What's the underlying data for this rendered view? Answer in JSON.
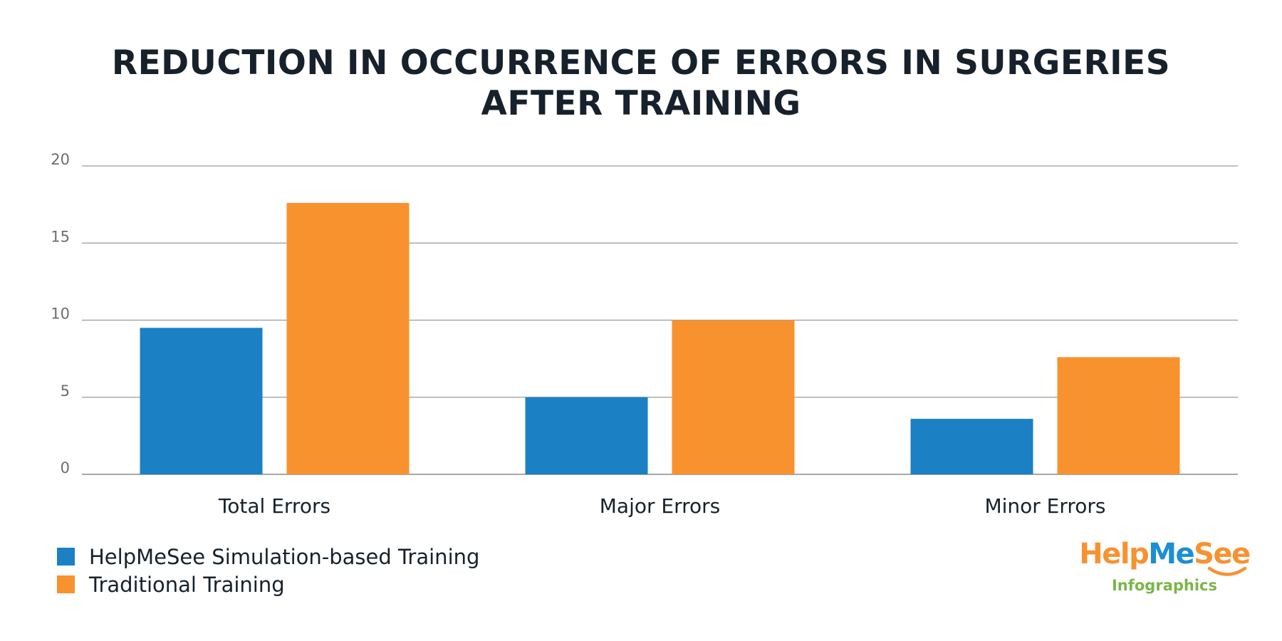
{
  "chart_data": {
    "type": "bar",
    "title_lines": [
      "REDUCTION IN OCCURRENCE OF ERRORS IN SURGERIES",
      "AFTER TRAINING"
    ],
    "categories": [
      "Total Errors",
      "Major Errors",
      "Minor Errors"
    ],
    "series": [
      {
        "name": "HelpMeSee Simulation-based Training",
        "color": "#1b80c4",
        "values": [
          9.5,
          5.0,
          3.6
        ]
      },
      {
        "name": "Traditional Training",
        "color": "#f7922e",
        "values": [
          17.6,
          10.0,
          7.6
        ]
      }
    ],
    "ylim": [
      0,
      20
    ],
    "yticks": [
      0,
      5,
      10,
      15,
      20
    ],
    "grid": true,
    "legend_position": "bottom-left"
  },
  "logo": {
    "part1": "Help",
    "part2": "Me",
    "part3": "See",
    "subtitle": "Infographics"
  }
}
